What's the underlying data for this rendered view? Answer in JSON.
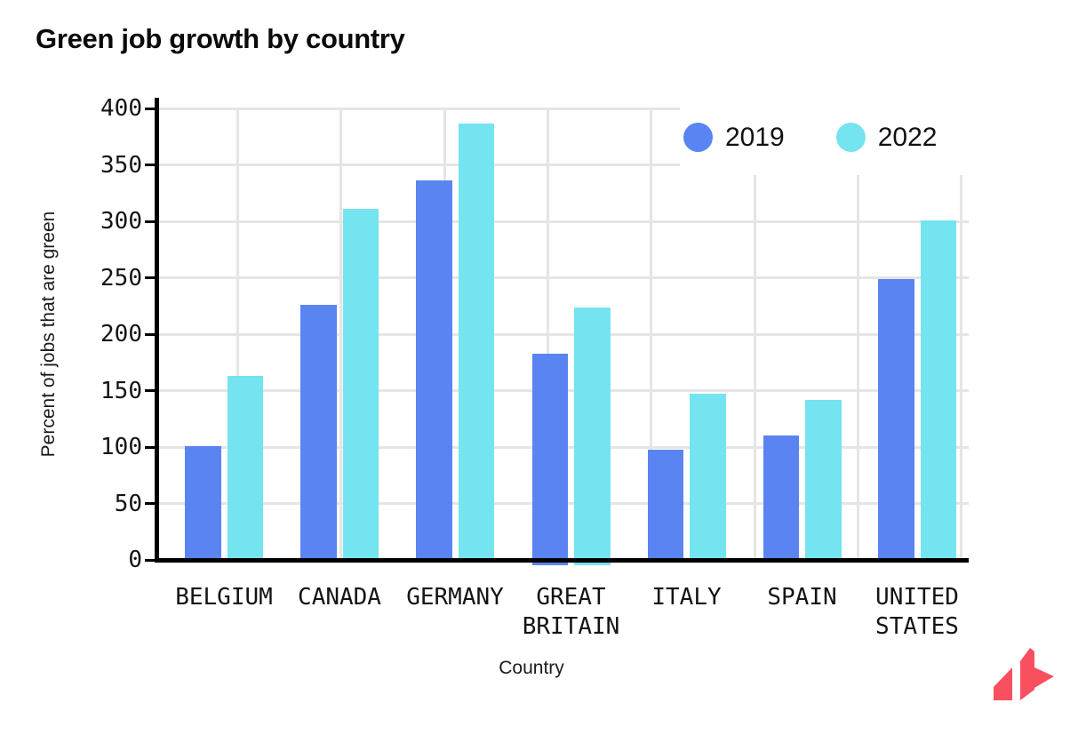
{
  "chart_data": {
    "type": "bar",
    "title": "Green job growth by country",
    "xlabel": "Country",
    "ylabel": "Percent of jobs that are green",
    "categories": [
      "BELGIUM",
      "CANADA",
      "GERMANY",
      "GREAT BRITAIN",
      "ITALY",
      "SPAIN",
      "UNITED STATES"
    ],
    "category_label_lines": [
      [
        "BELGIUM"
      ],
      [
        "CANADA"
      ],
      [
        "GERMANY"
      ],
      [
        "GREAT",
        "BRITAIN"
      ],
      [
        "ITALY"
      ],
      [
        "SPAIN"
      ],
      [
        "UNITED",
        "STATES"
      ]
    ],
    "series": [
      {
        "name": "2019",
        "color": "#5A84F2",
        "values": [
          101,
          226,
          336,
          183,
          98,
          110,
          249
        ]
      },
      {
        "name": "2022",
        "color": "#74E4F0",
        "values": [
          163,
          311,
          387,
          224,
          147,
          142,
          301
        ]
      }
    ],
    "ylim": [
      0,
      400
    ],
    "yticks": [
      0,
      50,
      100,
      150,
      200,
      250,
      300,
      350,
      400
    ],
    "grid": true,
    "legend_position": "top-right"
  },
  "colors": {
    "background": "#ffffff",
    "axis": "#000000",
    "grid": "#e5e5e5",
    "text": "#141414",
    "logo": "#F8505F"
  }
}
